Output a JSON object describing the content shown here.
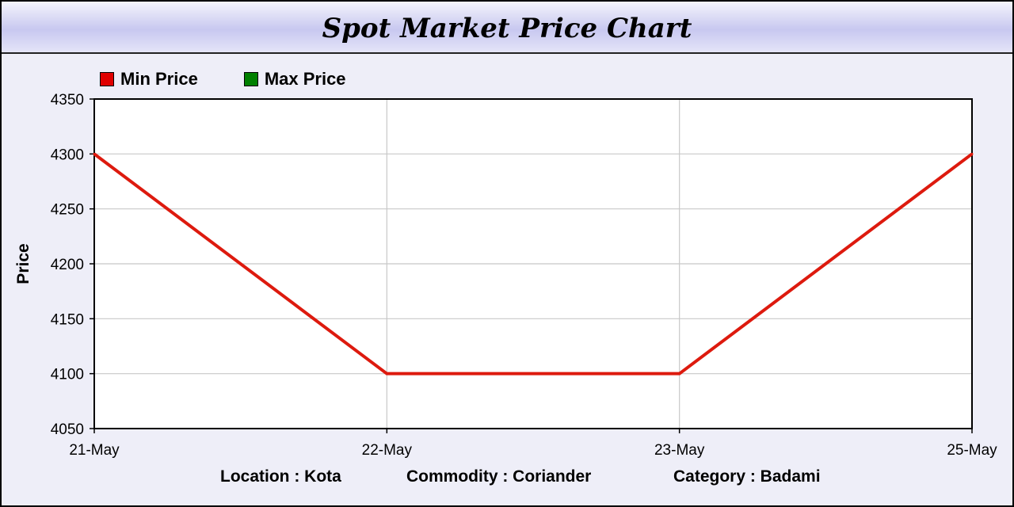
{
  "chart_data": {
    "type": "line",
    "title": "Spot Market Price Chart",
    "ylabel": "Price",
    "xlabel": "",
    "categories": [
      "21-May",
      "22-May",
      "23-May",
      "25-May"
    ],
    "ylim": [
      4050,
      4350
    ],
    "yticks": [
      4050,
      4100,
      4150,
      4200,
      4250,
      4300,
      4350
    ],
    "grid": true,
    "legend_position": "top-left",
    "legend": [
      {
        "name": "Min Price",
        "color": "#e00000"
      },
      {
        "name": "Max Price",
        "color": "#008000"
      }
    ],
    "series": [
      {
        "name": "Min Price",
        "color": "#dd1a0e",
        "values": [
          4300,
          4100,
          4100,
          4300
        ]
      }
    ]
  },
  "footer": {
    "location": "Location : Kota",
    "commodity": "Commodity : Coriander",
    "category": "Category : Badami"
  },
  "colors": {
    "background": "#eeeef8",
    "plot_background": "#ffffff",
    "gridline": "#c8c8c8"
  }
}
